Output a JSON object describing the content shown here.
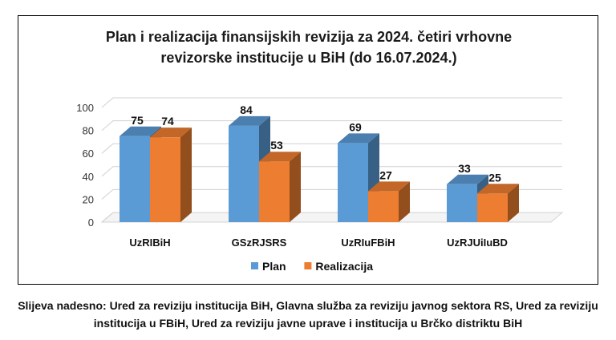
{
  "chart_data": {
    "type": "bar",
    "title": "Plan i realizacija finansijskih revizija za 2024. četiri vrhovne revizorske institucije u BiH (do 16.07.2024.)",
    "title_lines": [
      "Plan i realizacija finansijskih revizija za 2024. četiri vrhovne",
      "revizorske institucije u BiH (do 16.07.2024.)"
    ],
    "categories": [
      "UzRIBiH",
      "GSzRJSRS",
      "UzRIuFBiH",
      "UzRJUiIuBD"
    ],
    "series": [
      {
        "name": "Plan",
        "values": [
          75,
          84,
          69,
          33
        ],
        "color": "#5b9bd5"
      },
      {
        "name": "Realizacija",
        "values": [
          74,
          53,
          27,
          25
        ],
        "color": "#ed7d31"
      }
    ],
    "yticks": [
      "0",
      "20",
      "40",
      "60",
      "80",
      "100"
    ],
    "ylim": [
      0,
      100
    ],
    "grid": true,
    "legend_position": "bottom",
    "style": "3d-clustered-column"
  },
  "caption": "Slijeva nadesno: Ured za reviziju institucija BiH, Glavna služba za reviziju javnog sektora RS, Ured za reviziju institucija u FBiH, Ured za reviziju javne uprave i institucija u Brčko distriktu BiH"
}
